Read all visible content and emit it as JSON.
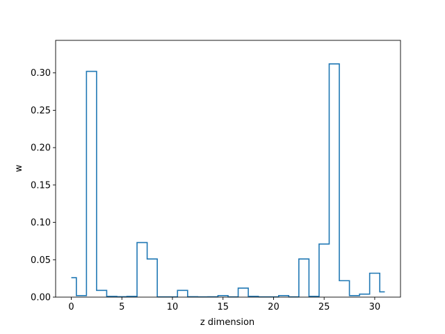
{
  "chart_data": {
    "type": "line",
    "drawstyle": "steps-mid",
    "xlabel": "z dimension",
    "ylabel": "w",
    "xlim": [
      -1.55,
      32.55
    ],
    "ylim": [
      0,
      0.3435
    ],
    "xticks": [
      0,
      5,
      10,
      15,
      20,
      25,
      30
    ],
    "yticks": [
      0.0,
      0.05,
      0.1,
      0.15,
      0.2,
      0.25,
      0.3
    ],
    "xtick_labels": [
      "0",
      "5",
      "10",
      "15",
      "20",
      "25",
      "30"
    ],
    "ytick_labels": [
      "0.00",
      "0.05",
      "0.10",
      "0.15",
      "0.20",
      "0.25",
      "0.30"
    ],
    "grid": false,
    "series": [
      {
        "color": "#1f77b4",
        "x": [
          0,
          1,
          2,
          3,
          4,
          5,
          6,
          7,
          8,
          9,
          10,
          11,
          12,
          13,
          14,
          15,
          16,
          17,
          18,
          19,
          20,
          21,
          22,
          23,
          24,
          25,
          26,
          27,
          28,
          29,
          30,
          31
        ],
        "values": [
          0.026,
          0.002,
          0.302,
          0.009,
          0.001,
          0.0005,
          0.001,
          0.073,
          0.051,
          0.0003,
          0.0003,
          0.009,
          0.0005,
          0.0003,
          0.0004,
          0.002,
          0.0003,
          0.012,
          0.001,
          0.0003,
          0.0003,
          0.002,
          0.0003,
          0.051,
          0.001,
          0.071,
          0.312,
          0.022,
          0.002,
          0.004,
          0.032,
          0.007
        ]
      }
    ]
  }
}
